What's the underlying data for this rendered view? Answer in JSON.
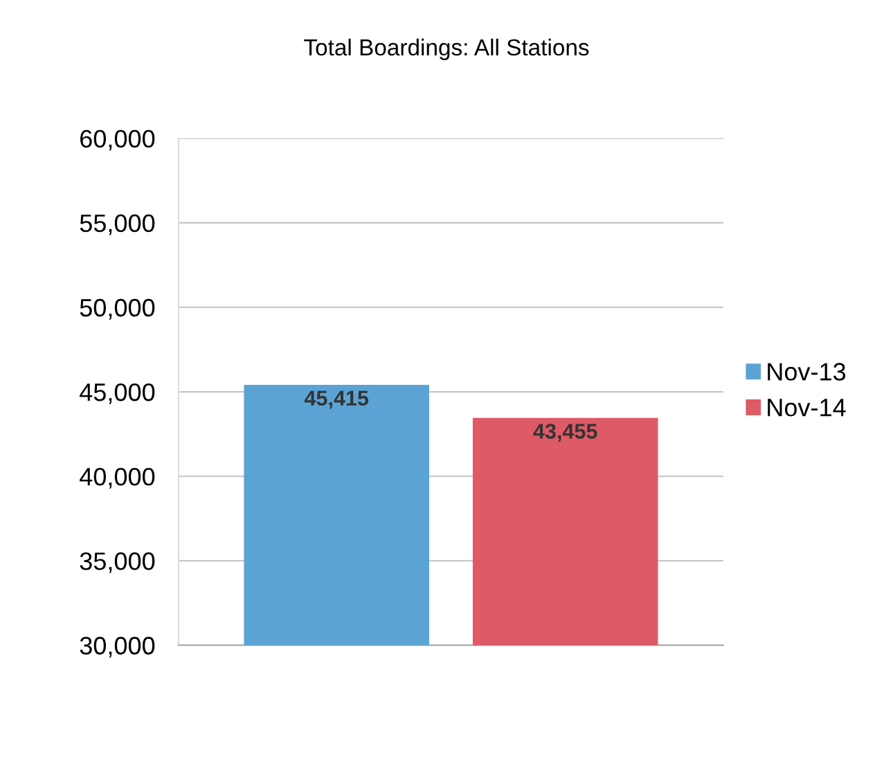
{
  "chart_data": {
    "type": "bar",
    "title": "Total Boardings: All Stations",
    "categories": [
      null
    ],
    "series": [
      {
        "name": "Nov-13",
        "color": "#5ba3d5",
        "values": [
          45415
        ],
        "value_labels": [
          "45,415"
        ]
      },
      {
        "name": "Nov-14",
        "color": "#de5a66",
        "values": [
          43455
        ],
        "value_labels": [
          "43,455"
        ]
      }
    ],
    "ylim": [
      30000,
      60000
    ],
    "yticks": [
      {
        "value": 30000,
        "label": "30,000"
      },
      {
        "value": 35000,
        "label": "35,000"
      },
      {
        "value": 40000,
        "label": "40,000"
      },
      {
        "value": 45000,
        "label": "45,000"
      },
      {
        "value": 50000,
        "label": "50,000"
      },
      {
        "value": 55000,
        "label": "55,000"
      },
      {
        "value": 60000,
        "label": "60,000"
      }
    ],
    "grid": "y",
    "legend": "right"
  }
}
